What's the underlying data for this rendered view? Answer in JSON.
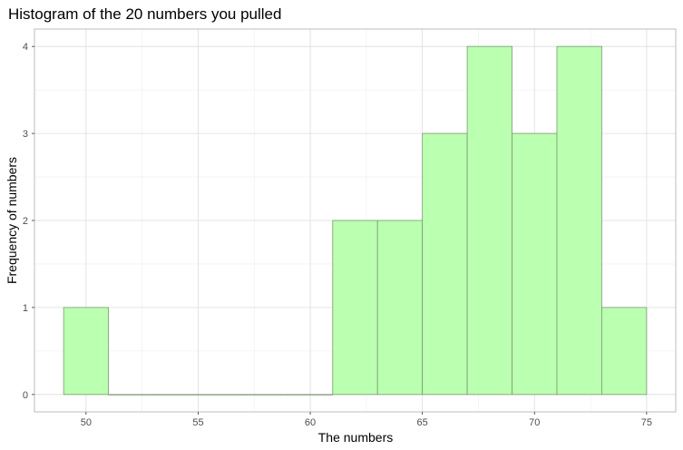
{
  "chart_data": {
    "type": "bar",
    "title": "Histogram of the 20 numbers you pulled",
    "xlabel": "The numbers",
    "ylabel": "Frequency of numbers",
    "bins": [
      {
        "start": 49,
        "end": 51,
        "count": 1
      },
      {
        "start": 51,
        "end": 53,
        "count": 0
      },
      {
        "start": 53,
        "end": 55,
        "count": 0
      },
      {
        "start": 55,
        "end": 57,
        "count": 0
      },
      {
        "start": 57,
        "end": 59,
        "count": 0
      },
      {
        "start": 59,
        "end": 61,
        "count": 0
      },
      {
        "start": 61,
        "end": 63,
        "count": 2
      },
      {
        "start": 63,
        "end": 65,
        "count": 2
      },
      {
        "start": 65,
        "end": 67,
        "count": 3
      },
      {
        "start": 67,
        "end": 69,
        "count": 4
      },
      {
        "start": 69,
        "end": 71,
        "count": 3
      },
      {
        "start": 71,
        "end": 73,
        "count": 4
      },
      {
        "start": 73,
        "end": 75,
        "count": 1
      }
    ],
    "x_ticks": [
      "50",
      "55",
      "60",
      "65",
      "70",
      "75"
    ],
    "y_ticks": [
      "0",
      "1",
      "2",
      "3",
      "4"
    ],
    "xlim": [
      47.7,
      76.3
    ],
    "ylim": [
      -0.2,
      4.2
    ],
    "grid": true,
    "colors": {
      "fill": "#bbffb0",
      "outline": "#7a9a75",
      "grid_major": "#dcdcdc",
      "grid_minor": "#eeeeee",
      "panel_border": "#bdbdbd"
    }
  }
}
